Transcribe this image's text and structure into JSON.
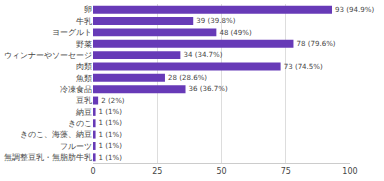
{
  "chart_data": {
    "type": "bar",
    "orientation": "horizontal",
    "categories": [
      "卵",
      "牛乳",
      "ヨーグルト",
      "野菜",
      "ウィンナーやソーセージ",
      "肉類",
      "魚類",
      "冷凍食品",
      "豆乳",
      "納豆",
      "きのこ",
      "きのこ、海藻、納豆",
      "フルーツ",
      "無調整豆乳・無脂肪牛乳"
    ],
    "values": [
      93,
      39,
      48,
      78,
      34,
      73,
      28,
      36,
      2,
      1,
      1,
      1,
      1,
      1
    ],
    "value_labels": [
      "93 (94.9%)",
      "39 (39.8%)",
      "48 (49%)",
      "78 (79.6%)",
      "34 (34.7%)",
      "73 (74.5%)",
      "28 (28.6%)",
      "36 (36.7%)",
      "2 (2%)",
      "1 (1%)",
      "1 (1%)",
      "1 (1%)",
      "1 (1%)",
      "1 (1%)"
    ],
    "color": "#673ab7",
    "xlim": [
      0,
      100
    ],
    "xticks": [
      0,
      25,
      50,
      75,
      100
    ],
    "grid": true,
    "data_labels": true
  }
}
